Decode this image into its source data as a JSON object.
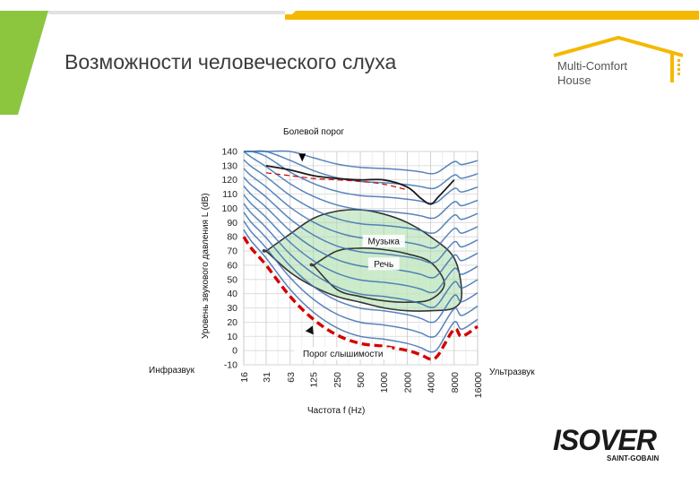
{
  "slide": {
    "title": "Возможности человеческого слуха"
  },
  "logo": {
    "brand_line1": "Multi-Comfort",
    "brand_line2": "House",
    "accent_color": "#f5b800"
  },
  "footer_logo": {
    "brand": "ISOVER",
    "sub": "SAINT-GOBAIN"
  },
  "colors": {
    "header_green": "#8cc63f",
    "header_yellow": "#f5b800",
    "curve_blue": "#3a6fb0",
    "threshold_red": "#d40000",
    "region_green": "#c8e8c8"
  },
  "chart_data": {
    "type": "line",
    "title": "Болевой порог",
    "xlabel": "Частота f (Hz)",
    "ylabel": "Уровень звукового давления L (dB)",
    "x_ticks": [
      "16",
      "31",
      "63",
      "125",
      "250",
      "500",
      "1000",
      "2000",
      "4000",
      "8000",
      "16000"
    ],
    "x_scale": "log",
    "xlim": [
      16,
      16000
    ],
    "y_ticks": [
      -10,
      0,
      10,
      20,
      30,
      40,
      50,
      60,
      70,
      80,
      90,
      100,
      110,
      120,
      130,
      140
    ],
    "ylim": [
      -10,
      140
    ],
    "grid": true,
    "annotations": {
      "pain_threshold": "Болевой порог",
      "hearing_threshold": "Порог слышимости",
      "music": "Музыка",
      "speech": "Речь",
      "infrasound": "Инфразвук",
      "ultrasound": "Ультразвук"
    },
    "series": [
      {
        "name": "Порог слышимости",
        "style": "dashed-red",
        "x": [
          16,
          20,
          31,
          63,
          125,
          250,
          500,
          1000,
          2000,
          3000,
          4000,
          5000,
          8000,
          10000,
          16000
        ],
        "y": [
          80,
          72,
          60,
          38,
          22,
          11,
          5,
          3,
          0,
          -3,
          -6,
          -3,
          15,
          10,
          17
        ]
      },
      {
        "name": "Болевой порог",
        "style": "solid-black",
        "x": [
          31,
          63,
          125,
          250,
          500,
          1000,
          2000,
          3000,
          4000,
          5000,
          8000
        ],
        "y": [
          130,
          127,
          123,
          121,
          120,
          120,
          115,
          107,
          103,
          108,
          120
        ]
      },
      {
        "name": "Болевой порог (пунктир)",
        "style": "dashed-red-thin",
        "x": [
          31,
          63,
          125,
          250,
          500,
          1000,
          2000
        ],
        "y": [
          125,
          123,
          121,
          120,
          119,
          117,
          113
        ]
      }
    ],
    "regions": [
      {
        "name": "Музыка",
        "x": [
          31,
          63,
          125,
          250,
          500,
          1000,
          2000,
          4000,
          8000,
          10000,
          8000,
          4000,
          2000,
          1000,
          500,
          250,
          125,
          63,
          31
        ],
        "y": [
          70,
          82,
          93,
          98,
          99,
          96,
          90,
          80,
          65,
          40,
          30,
          28,
          28,
          30,
          34,
          38,
          45,
          55,
          70
        ]
      },
      {
        "name": "Речь",
        "x": [
          125,
          250,
          500,
          1000,
          2000,
          4000,
          6000,
          4000,
          2000,
          1000,
          500,
          250,
          125
        ],
        "y": [
          60,
          70,
          72,
          71,
          68,
          62,
          47,
          36,
          34,
          35,
          38,
          43,
          60
        ]
      }
    ],
    "equal_loudness_levels": [
      0,
      10,
      20,
      30,
      40,
      50,
      60,
      70,
      80,
      90,
      100,
      110,
      120
    ]
  }
}
